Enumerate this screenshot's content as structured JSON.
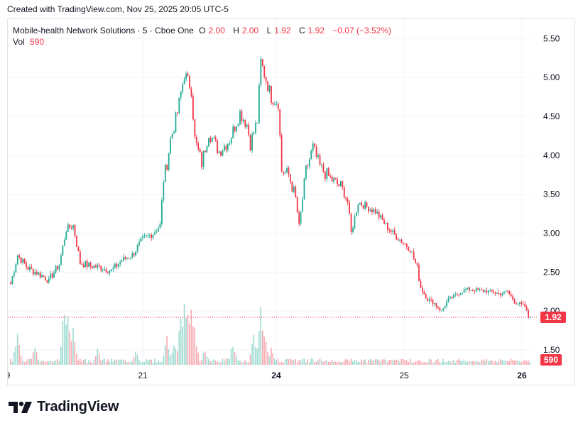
{
  "header": {
    "created_text": "Created with TradingView.com, Nov 25, 2025 20:05 UTC-5"
  },
  "legend": {
    "symbol": "Mobile-health Network Solutions · 5 · Cboe One",
    "o_label": "O",
    "o_value": "2.00",
    "h_label": "H",
    "h_value": "2.00",
    "l_label": "L",
    "l_value": "1.92",
    "c_label": "C",
    "c_value": "1.92",
    "change": "−0.07 (−3.52%)",
    "vol_label": "Vol",
    "vol_value": "590"
  },
  "brand": {
    "name": "TradingView",
    "logo_icon": "tradingview-logo-icon"
  },
  "colors": {
    "up": "#22ab94",
    "down": "#f23645",
    "up_volume": "#9fdad1",
    "down_volume": "#f7a9b0",
    "grid": "#f0f3fa",
    "text": "#131722"
  },
  "chart_data": {
    "type": "candlestick",
    "title": "Mobile-health Network Solutions · 5 · Cboe One",
    "ylim": [
      1.3,
      5.75
    ],
    "yticks": [
      "5.50",
      "5.00",
      "4.50",
      "4.00",
      "3.50",
      "3.00",
      "2.50",
      "2.00",
      "1.50"
    ],
    "xticks": [
      "9",
      "21",
      "24",
      "25",
      "26"
    ],
    "last_price": "1.92",
    "last_volume": "590",
    "keypoints": [
      [
        0,
        2.35
      ],
      [
        4,
        2.72
      ],
      [
        10,
        2.55
      ],
      [
        16,
        2.48
      ],
      [
        22,
        2.4
      ],
      [
        28,
        2.6
      ],
      [
        32,
        3.05
      ],
      [
        36,
        3.1
      ],
      [
        40,
        2.62
      ],
      [
        46,
        2.58
      ],
      [
        52,
        2.56
      ],
      [
        58,
        2.52
      ],
      [
        64,
        2.65
      ],
      [
        70,
        2.72
      ],
      [
        76,
        2.92
      ],
      [
        82,
        3.0
      ],
      [
        86,
        3.1
      ],
      [
        88,
        3.7
      ],
      [
        90,
        3.9
      ],
      [
        92,
        4.2
      ],
      [
        96,
        4.55
      ],
      [
        100,
        5.05
      ],
      [
        104,
        4.85
      ],
      [
        106,
        4.2
      ],
      [
        110,
        3.9
      ],
      [
        114,
        4.3
      ],
      [
        120,
        4.05
      ],
      [
        126,
        4.2
      ],
      [
        132,
        4.55
      ],
      [
        136,
        4.4
      ],
      [
        138,
        4.15
      ],
      [
        142,
        4.45
      ],
      [
        144,
        5.2
      ],
      [
        150,
        4.75
      ],
      [
        154,
        4.68
      ],
      [
        156,
        3.8
      ],
      [
        160,
        3.75
      ],
      [
        164,
        3.45
      ],
      [
        166,
        3.08
      ],
      [
        170,
        3.8
      ],
      [
        174,
        4.1
      ],
      [
        178,
        3.85
      ],
      [
        184,
        3.7
      ],
      [
        190,
        3.6
      ],
      [
        194,
        3.4
      ],
      [
        196,
        3.0
      ],
      [
        200,
        3.4
      ],
      [
        204,
        3.35
      ],
      [
        210,
        3.28
      ],
      [
        216,
        3.1
      ],
      [
        220,
        3.0
      ],
      [
        226,
        2.88
      ],
      [
        230,
        2.8
      ],
      [
        234,
        2.55
      ],
      [
        236,
        2.3
      ],
      [
        240,
        2.15
      ],
      [
        244,
        2.1
      ],
      [
        248,
        2.0
      ],
      [
        252,
        2.15
      ],
      [
        256,
        2.2
      ],
      [
        262,
        2.28
      ],
      [
        268,
        2.27
      ],
      [
        276,
        2.25
      ],
      [
        282,
        2.22
      ],
      [
        286,
        2.25
      ],
      [
        290,
        2.12
      ],
      [
        296,
        2.06
      ],
      [
        298,
        1.92
      ]
    ],
    "volume_peaks": [
      [
        4,
        0.55
      ],
      [
        14,
        0.3
      ],
      [
        31,
        1.0
      ],
      [
        33,
        0.75
      ],
      [
        36,
        0.55
      ],
      [
        50,
        0.25
      ],
      [
        72,
        0.22
      ],
      [
        90,
        0.45
      ],
      [
        94,
        0.35
      ],
      [
        98,
        0.75
      ],
      [
        100,
        0.95
      ],
      [
        102,
        1.0
      ],
      [
        104,
        0.85
      ],
      [
        106,
        0.55
      ],
      [
        112,
        0.25
      ],
      [
        128,
        0.35
      ],
      [
        140,
        0.45
      ],
      [
        144,
        0.85
      ],
      [
        146,
        0.55
      ],
      [
        150,
        0.25
      ],
      [
        168,
        0.12
      ],
      [
        178,
        0.1
      ],
      [
        212,
        0.08
      ],
      [
        262,
        0.04
      ],
      [
        298,
        0.05
      ]
    ]
  }
}
